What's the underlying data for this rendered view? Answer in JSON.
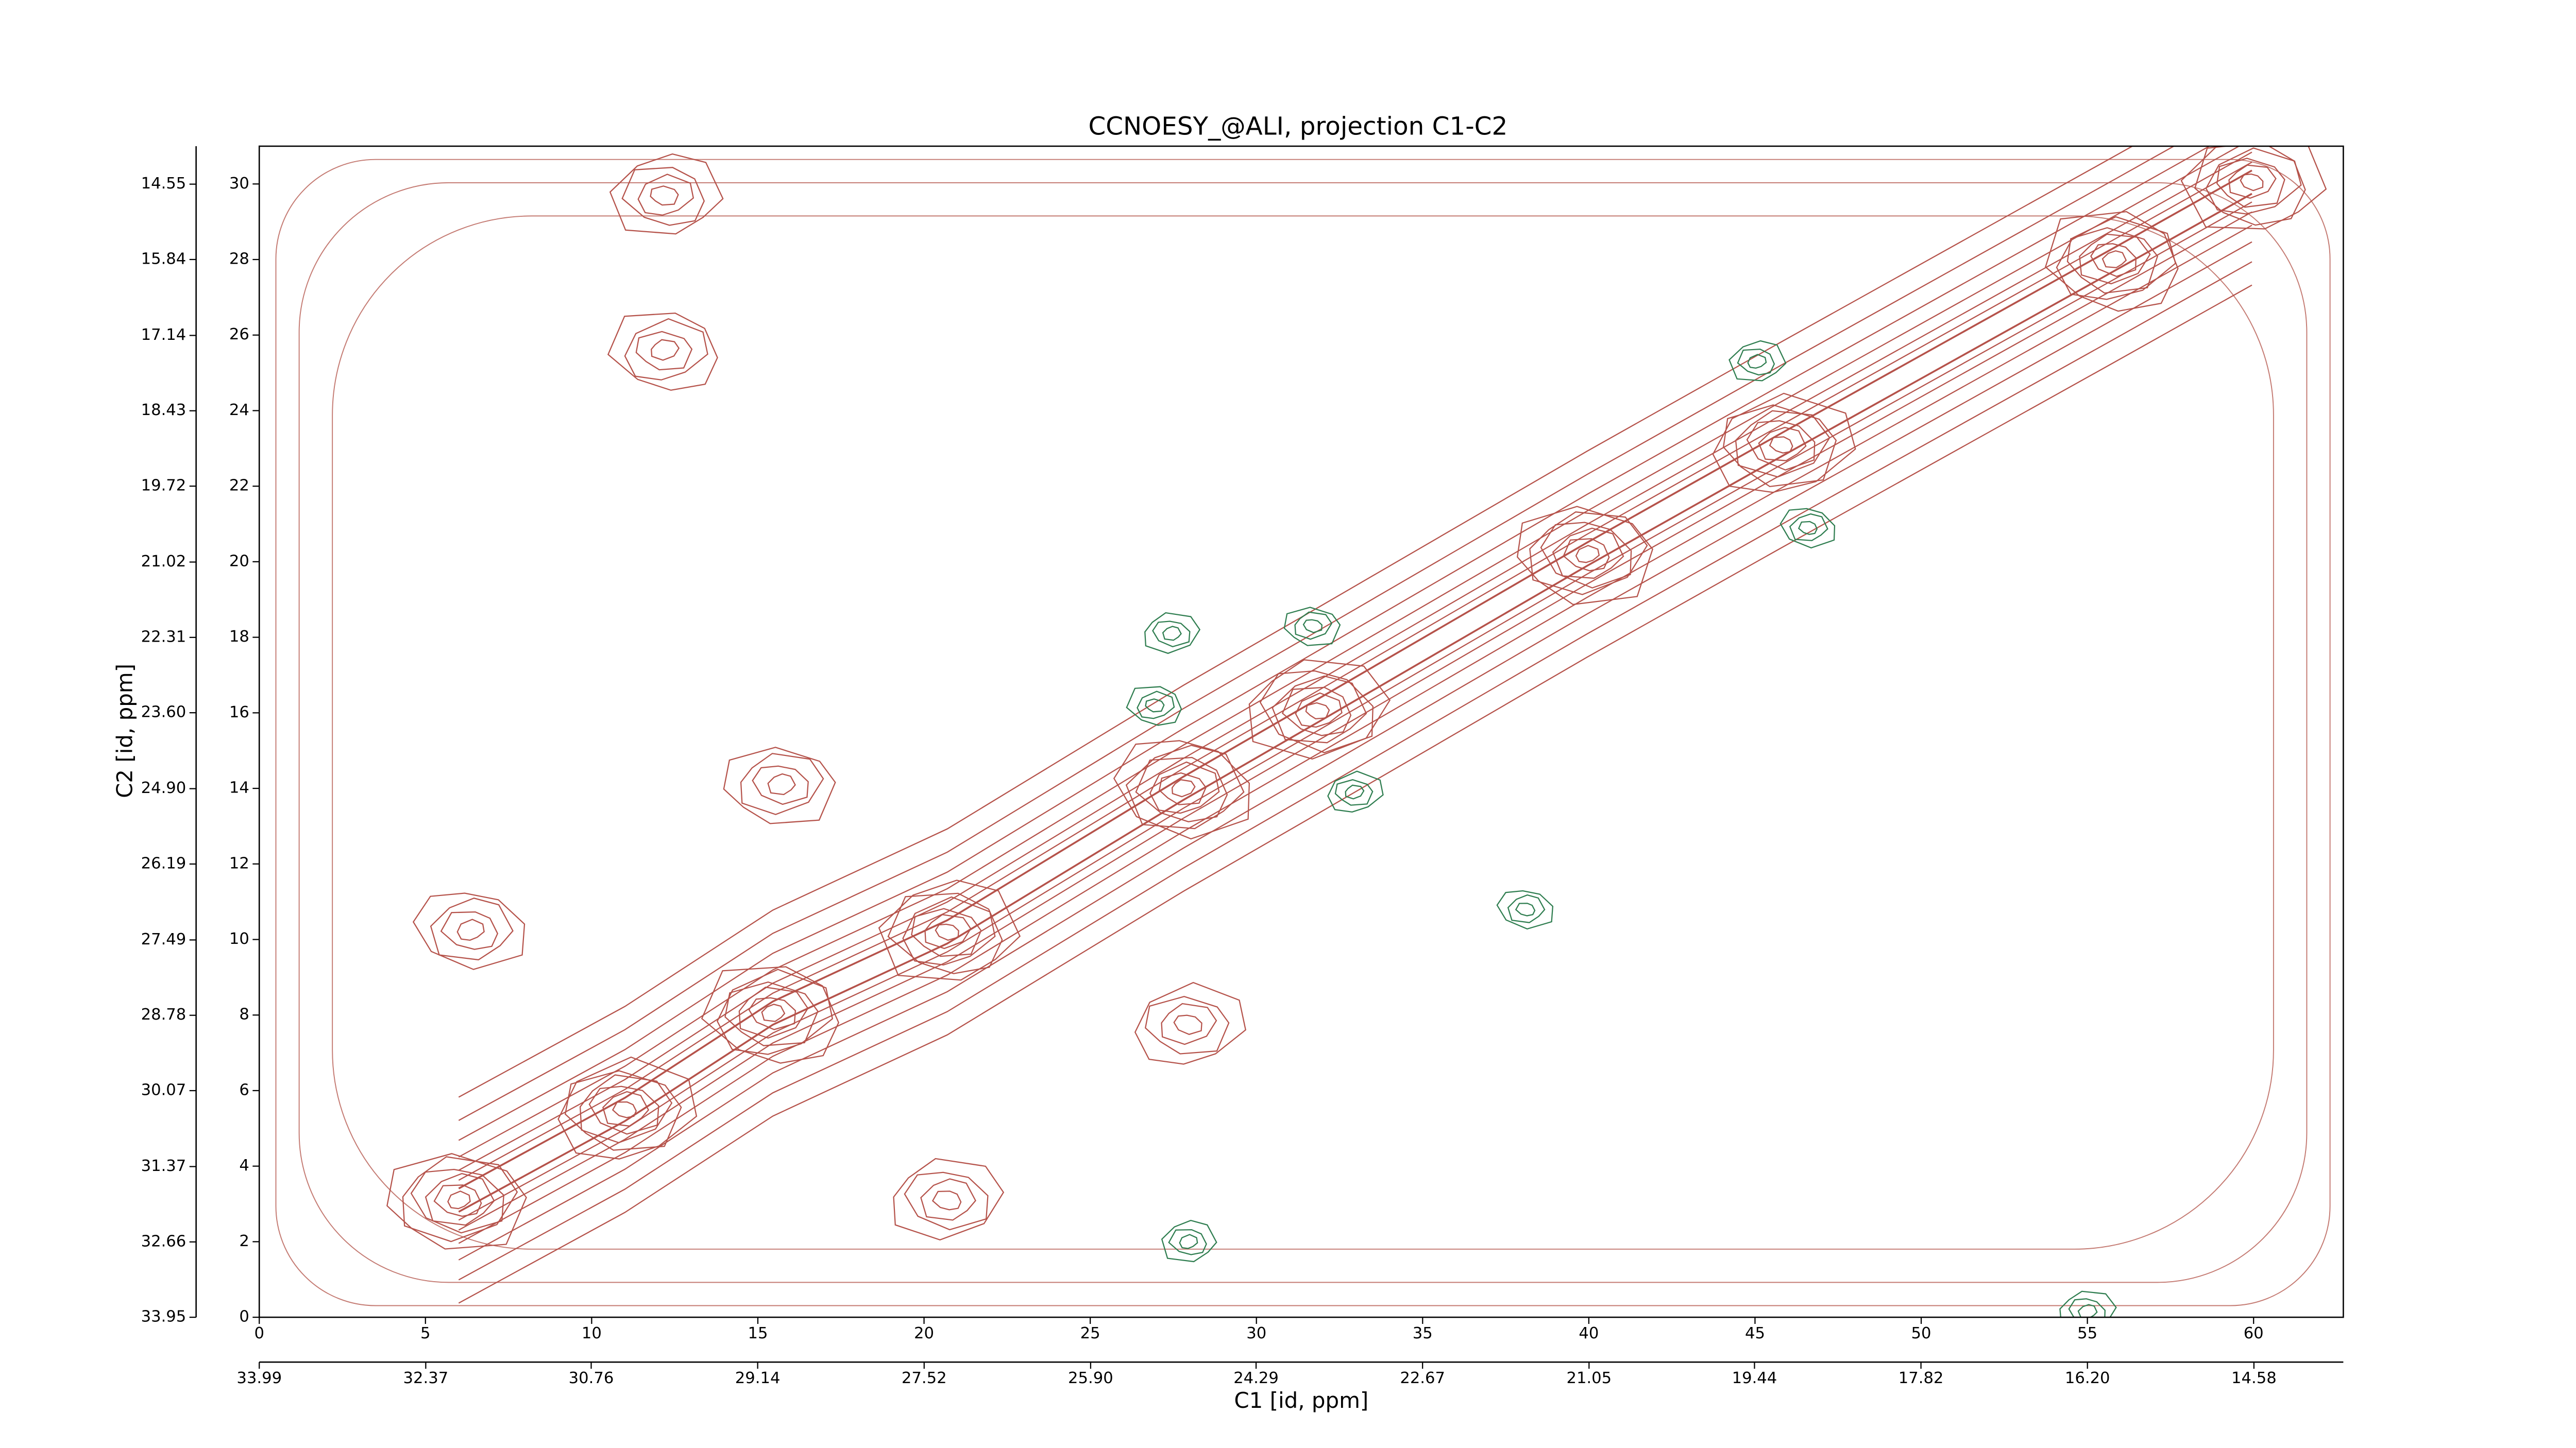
{
  "chart_data": {
    "type": "contour",
    "title": "CCNOESY_@ALI, projection C1-C2",
    "xlabel": "C1 [id, ppm]",
    "ylabel": "C2 [id, ppm]",
    "xlim": [
      0,
      62.7
    ],
    "xticks": [
      0,
      5,
      10,
      15,
      20,
      25,
      30,
      35,
      40,
      45,
      50,
      55,
      60
    ],
    "ylim": [
      0,
      31
    ],
    "yticks": [
      0,
      2,
      4,
      6,
      8,
      10,
      12,
      14,
      16,
      18,
      20,
      22,
      24,
      26,
      28,
      30
    ],
    "x2lim": [
      33.99,
      13.71
    ],
    "x2ticks": [
      33.99,
      32.37,
      30.76,
      29.14,
      27.52,
      {
        "value": 25.9,
        "label": "25.90"
      },
      24.29,
      22.67,
      21.05,
      19.44,
      17.82,
      {
        "value": 16.2,
        "label": "16.20"
      },
      14.58
    ],
    "y2lim": [
      33.95,
      13.9
    ],
    "y2ticks": [
      33.95,
      32.66,
      31.37,
      30.07,
      28.78,
      27.49,
      26.19,
      {
        "value": 24.9,
        "label": "24.90"
      },
      {
        "value": 23.6,
        "label": "23.60"
      },
      22.31,
      21.02,
      19.72,
      18.43,
      17.14,
      15.84,
      14.55
    ],
    "diagonal_peaks": {
      "color": "#b5524a",
      "x": [
        6,
        11,
        15.45,
        20.7,
        27.8,
        31.85,
        39.95,
        45.8,
        55.8,
        59.95
      ],
      "y": [
        3.1,
        5.5,
        8.05,
        10.2,
        14.0,
        16.06,
        20.2,
        23.1,
        28.0,
        30.05
      ]
    },
    "cross_peaks": {
      "color": "#b5524a",
      "x": [
        6.35,
        20.7,
        15.7,
        27.95,
        12.2,
        12.2
      ],
      "y": [
        10.25,
        3.1,
        14.1,
        7.75,
        25.6,
        29.7
      ]
    },
    "negative_peaks": {
      "color": "#2e7d4f",
      "x": [
        27.95,
        38.1,
        27.45,
        31.7,
        32.95,
        26.95,
        45.05,
        46.6,
        55.0
      ],
      "y": [
        2.0,
        10.8,
        18.1,
        18.3,
        13.9,
        16.2,
        25.3,
        20.9,
        0.15
      ]
    }
  }
}
